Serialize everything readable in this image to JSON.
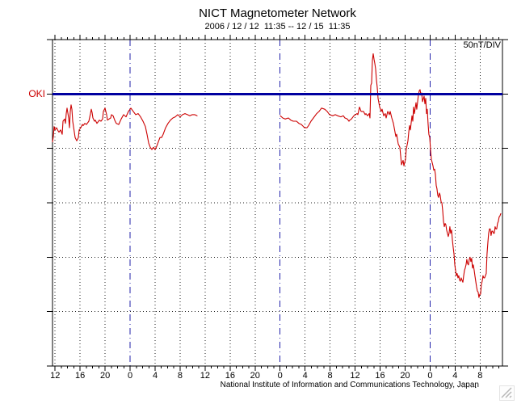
{
  "header": {
    "title": "NICT Magnetometer Network",
    "subtitle": "2006 / 12 / 12  11:35 -- 12 / 15  11:35"
  },
  "chart_data": {
    "type": "line",
    "title": "NICT Magnetometer Network",
    "subtitle": "2006 / 12 / 12  11:35 -- 12 / 15  11:35",
    "station_label": "OKI",
    "scale_label": "50nT/DIV",
    "y_axis": {
      "nt_per_division": 50,
      "divisions": 6,
      "baseline_division_from_top": 1,
      "baseline_station": "OKI",
      "gridlines": "dotted horizontal at each 50nT division"
    },
    "x_axis": {
      "start": "2006/12/12 11:35",
      "end": "2006/12/15 11:35",
      "hours_total": 72,
      "first_tick_hour_offset": 0.4167,
      "major_tick_interval_hours": 4,
      "minor_tick_interval_hours": 1,
      "tick_labels": [
        "12",
        "16",
        "20",
        "0",
        "4",
        "8",
        "12",
        "16",
        "20",
        "0",
        "4",
        "8",
        "12",
        "16",
        "20",
        "0",
        "4",
        "8"
      ]
    },
    "day_boundary_hour_offsets": [
      12.4167,
      36.4167,
      60.4167
    ],
    "colors": {
      "trace": "#cc0000",
      "baseline": "#0000a0",
      "day_line": "#2222aa",
      "grid": "#222222",
      "axis": "#000000"
    },
    "series": {
      "station": "OKI",
      "units": "nT relative to OKI baseline (hour offset from start, value)",
      "segments": [
        [
          [
            0,
            -44
          ],
          [
            0.13,
            -39
          ],
          [
            0.26,
            -30
          ],
          [
            0.39,
            -33
          ],
          [
            0.65,
            -31
          ],
          [
            0.9,
            -34
          ],
          [
            1.03,
            -35
          ],
          [
            1.29,
            -33
          ],
          [
            1.55,
            -37
          ],
          [
            1.68,
            -25
          ],
          [
            1.94,
            -23
          ],
          [
            2.07,
            -27
          ],
          [
            2.2,
            -18
          ],
          [
            2.33,
            -13
          ],
          [
            2.59,
            -22
          ],
          [
            2.71,
            -31
          ],
          [
            2.84,
            -16
          ],
          [
            2.97,
            -10
          ],
          [
            3.1,
            -14
          ],
          [
            3.23,
            -25
          ],
          [
            3.49,
            -35
          ],
          [
            3.62,
            -40
          ],
          [
            3.88,
            -43
          ],
          [
            4.14,
            -40
          ],
          [
            4.27,
            -33
          ],
          [
            4.52,
            -31
          ],
          [
            4.78,
            -28
          ],
          [
            4.91,
            -29
          ],
          [
            5.17,
            -27
          ],
          [
            5.43,
            -28
          ],
          [
            5.56,
            -27
          ],
          [
            5.82,
            -25
          ],
          [
            6.08,
            -18
          ],
          [
            6.2,
            -14
          ],
          [
            6.33,
            -17
          ],
          [
            6.46,
            -22
          ],
          [
            6.72,
            -25
          ],
          [
            6.85,
            -24
          ],
          [
            7.11,
            -27
          ],
          [
            7.37,
            -25
          ],
          [
            7.5,
            -24
          ],
          [
            7.76,
            -25
          ],
          [
            8.01,
            -23
          ],
          [
            8.14,
            -16
          ],
          [
            8.4,
            -13
          ],
          [
            8.53,
            -16
          ],
          [
            8.66,
            -19
          ],
          [
            8.79,
            -24
          ],
          [
            9.05,
            -23
          ],
          [
            9.31,
            -22
          ],
          [
            9.44,
            -19
          ],
          [
            9.7,
            -20
          ],
          [
            9.95,
            -24
          ],
          [
            10.21,
            -27
          ],
          [
            10.6,
            -28
          ],
          [
            10.99,
            -23
          ],
          [
            11.38,
            -19
          ],
          [
            11.76,
            -21
          ],
          [
            12.15,
            -16
          ],
          [
            12.54,
            -13
          ],
          [
            12.93,
            -16
          ],
          [
            13.31,
            -19
          ],
          [
            13.7,
            -18
          ],
          [
            14.09,
            -21
          ],
          [
            14.48,
            -25
          ],
          [
            14.87,
            -30
          ],
          [
            15.12,
            -37
          ],
          [
            15.38,
            -45
          ],
          [
            15.64,
            -49
          ],
          [
            15.9,
            -51
          ],
          [
            16.16,
            -49
          ],
          [
            16.42,
            -51
          ],
          [
            16.67,
            -48
          ],
          [
            16.93,
            -44
          ],
          [
            17.19,
            -40
          ],
          [
            17.45,
            -40
          ],
          [
            17.71,
            -37
          ],
          [
            18.1,
            -31
          ],
          [
            18.48,
            -27
          ],
          [
            18.87,
            -24
          ],
          [
            19.26,
            -22
          ],
          [
            19.65,
            -21
          ],
          [
            20.04,
            -19
          ],
          [
            20.42,
            -21
          ],
          [
            20.81,
            -19
          ],
          [
            21.2,
            -18
          ],
          [
            21.59,
            -19
          ],
          [
            21.98,
            -20
          ],
          [
            22.36,
            -19
          ],
          [
            22.75,
            -19
          ],
          [
            23.14,
            -20
          ]
        ],
        [
          [
            36.45,
            -20
          ],
          [
            36.84,
            -22
          ],
          [
            37.23,
            -23
          ],
          [
            37.74,
            -22
          ],
          [
            38.13,
            -24
          ],
          [
            38.52,
            -25
          ],
          [
            39.04,
            -25
          ],
          [
            39.42,
            -27
          ],
          [
            39.81,
            -28
          ],
          [
            40.33,
            -31
          ],
          [
            40.72,
            -31
          ],
          [
            40.98,
            -29
          ],
          [
            41.36,
            -25
          ],
          [
            41.75,
            -22
          ],
          [
            42.27,
            -18
          ],
          [
            42.66,
            -16
          ],
          [
            43.05,
            -13
          ],
          [
            43.56,
            -14
          ],
          [
            43.95,
            -16
          ],
          [
            44.34,
            -19
          ],
          [
            44.86,
            -20
          ],
          [
            45.24,
            -19
          ],
          [
            45.63,
            -20
          ],
          [
            46.15,
            -21
          ],
          [
            46.54,
            -20
          ],
          [
            46.8,
            -22
          ],
          [
            47.18,
            -23
          ],
          [
            47.44,
            -25
          ],
          [
            47.57,
            -24
          ],
          [
            47.83,
            -23
          ],
          [
            48.22,
            -20
          ],
          [
            48.47,
            -19
          ],
          [
            48.73,
            -18
          ],
          [
            48.86,
            -19
          ],
          [
            49.12,
            -12
          ],
          [
            49.38,
            -16
          ],
          [
            49.77,
            -16
          ],
          [
            50.03,
            -19
          ],
          [
            50.15,
            -18
          ],
          [
            50.41,
            -20
          ],
          [
            50.67,
            -18
          ],
          [
            50.8,
            -22
          ],
          [
            50.93,
            8
          ],
          [
            51.06,
            10
          ],
          [
            51.19,
            31
          ],
          [
            51.32,
            37
          ],
          [
            51.45,
            32
          ],
          [
            51.58,
            28
          ],
          [
            51.7,
            23
          ],
          [
            51.83,
            13
          ],
          [
            51.96,
            6
          ],
          [
            52.09,
            -4
          ],
          [
            52.35,
            -12
          ],
          [
            52.61,
            -16
          ],
          [
            52.74,
            -14
          ],
          [
            53,
            -20
          ],
          [
            53.25,
            -18
          ],
          [
            53.38,
            -22
          ],
          [
            53.64,
            -16
          ],
          [
            53.9,
            -19
          ],
          [
            54.03,
            -16
          ],
          [
            54.29,
            -22
          ],
          [
            54.55,
            -27
          ],
          [
            54.68,
            -31
          ],
          [
            54.94,
            -39
          ],
          [
            55.06,
            -37
          ],
          [
            55.32,
            -46
          ],
          [
            55.58,
            -49
          ],
          [
            55.71,
            -57
          ],
          [
            55.84,
            -65
          ],
          [
            56.1,
            -61
          ],
          [
            56.23,
            -66
          ],
          [
            56.49,
            -60
          ],
          [
            56.61,
            -51
          ],
          [
            56.87,
            -43
          ],
          [
            57,
            -35
          ],
          [
            57.13,
            -29
          ],
          [
            57.26,
            -33
          ],
          [
            57.52,
            -20
          ],
          [
            57.65,
            -25
          ],
          [
            57.78,
            -12
          ],
          [
            57.91,
            -18
          ],
          [
            58.17,
            -8
          ],
          [
            58.29,
            -14
          ],
          [
            58.55,
            -1
          ],
          [
            58.68,
            3
          ],
          [
            58.81,
            4
          ],
          [
            58.94,
            -1
          ],
          [
            59.07,
            1
          ],
          [
            59.2,
            -7
          ],
          [
            59.46,
            -2
          ],
          [
            59.59,
            -9
          ],
          [
            59.72,
            -4
          ],
          [
            59.85,
            -18
          ],
          [
            59.97,
            -14
          ],
          [
            60.1,
            -27
          ],
          [
            60.23,
            -37
          ],
          [
            60.36,
            -40
          ],
          [
            60.49,
            -52
          ],
          [
            60.62,
            -60
          ],
          [
            60.75,
            -63
          ],
          [
            60.88,
            -66
          ],
          [
            61.01,
            -70
          ],
          [
            61.14,
            -69
          ],
          [
            61.27,
            -74
          ],
          [
            61.4,
            -84
          ],
          [
            61.52,
            -87
          ],
          [
            61.65,
            -93
          ],
          [
            61.78,
            -95
          ],
          [
            61.91,
            -91
          ],
          [
            62.04,
            -93
          ],
          [
            62.17,
            -99
          ],
          [
            62.3,
            -100
          ],
          [
            62.43,
            -107
          ],
          [
            62.56,
            -117
          ],
          [
            62.69,
            -122
          ],
          [
            62.82,
            -119
          ],
          [
            62.94,
            -120
          ],
          [
            63.07,
            -125
          ],
          [
            63.2,
            -128
          ],
          [
            63.33,
            -131
          ],
          [
            63.46,
            -128
          ],
          [
            63.59,
            -122
          ],
          [
            63.72,
            -128
          ],
          [
            63.85,
            -125
          ],
          [
            63.98,
            -134
          ],
          [
            64.11,
            -141
          ],
          [
            64.24,
            -147
          ],
          [
            64.37,
            -157
          ],
          [
            64.49,
            -162
          ],
          [
            64.62,
            -167
          ],
          [
            64.75,
            -165
          ],
          [
            64.88,
            -169
          ],
          [
            65.01,
            -167
          ],
          [
            65.14,
            -171
          ],
          [
            65.27,
            -172
          ],
          [
            65.4,
            -169
          ],
          [
            65.53,
            -171
          ],
          [
            65.66,
            -173
          ],
          [
            65.79,
            -167
          ],
          [
            65.92,
            -162
          ],
          [
            66.04,
            -160
          ],
          [
            66.17,
            -157
          ],
          [
            66.3,
            -152
          ],
          [
            66.43,
            -156
          ],
          [
            66.56,
            -157
          ],
          [
            66.69,
            -152
          ],
          [
            66.82,
            -150
          ],
          [
            66.95,
            -154
          ],
          [
            67.08,
            -151
          ],
          [
            67.21,
            -160
          ],
          [
            67.34,
            -157
          ],
          [
            67.47,
            -162
          ],
          [
            67.59,
            -167
          ],
          [
            67.72,
            -172
          ],
          [
            67.85,
            -177
          ],
          [
            67.98,
            -181
          ],
          [
            68.11,
            -182
          ],
          [
            68.24,
            -187
          ],
          [
            68.37,
            -184
          ],
          [
            68.5,
            -184
          ],
          [
            68.63,
            -175
          ],
          [
            68.76,
            -172
          ],
          [
            68.89,
            -167
          ],
          [
            69.02,
            -169
          ],
          [
            69.14,
            -169
          ],
          [
            69.27,
            -167
          ],
          [
            69.4,
            -165
          ],
          [
            69.53,
            -147
          ],
          [
            69.66,
            -137
          ],
          [
            69.79,
            -128
          ],
          [
            69.92,
            -124
          ],
          [
            70.05,
            -124
          ],
          [
            70.18,
            -130
          ],
          [
            70.31,
            -126
          ],
          [
            70.44,
            -126
          ],
          [
            70.57,
            -128
          ],
          [
            70.7,
            -128
          ],
          [
            70.83,
            -122
          ],
          [
            70.95,
            -124
          ],
          [
            71.08,
            -124
          ],
          [
            71.21,
            -119
          ],
          [
            71.34,
            -117
          ],
          [
            71.47,
            -113
          ],
          [
            71.6,
            -112
          ],
          [
            71.73,
            -110
          ]
        ]
      ]
    }
  },
  "footer": {
    "credit": "National Institute of Information and Communications Technology, Japan",
    "fine_print": "· ·· ···▪"
  }
}
